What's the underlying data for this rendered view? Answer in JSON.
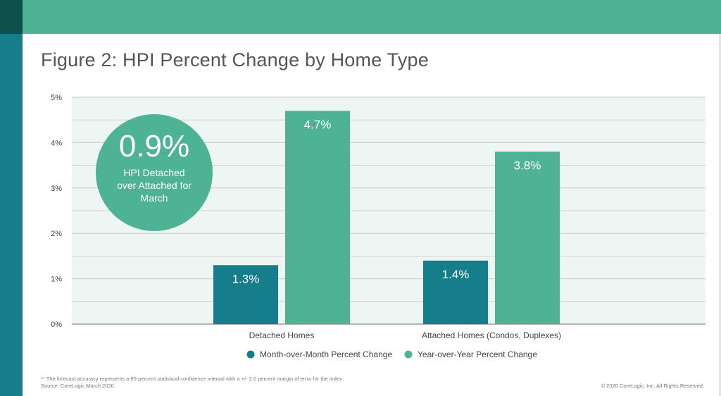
{
  "title": "Figure 2: HPI Percent Change by Home Type",
  "colors": {
    "mom": "#167e8a",
    "yoy": "#4db394",
    "plot_bg": "#eef6f3",
    "grid": "#c9c9c9"
  },
  "callout": {
    "value": "0.9%",
    "caption": "HPI Detached over Attached for March"
  },
  "chart_data": {
    "type": "bar",
    "title": "Figure 2: HPI Percent Change by Home Type",
    "categories": [
      "Detached Homes",
      "Attached Homes (Condos, Duplexes)"
    ],
    "series": [
      {
        "name": "Month-over-Month Percent Change",
        "values": [
          1.3,
          1.4
        ],
        "labels": [
          "1.3%",
          "1.4%"
        ]
      },
      {
        "name": "Year-over-Year Percent Change",
        "values": [
          4.7,
          3.8
        ],
        "labels": [
          "4.7%",
          "3.8%"
        ]
      }
    ],
    "yticks": [
      0,
      1,
      2,
      3,
      4,
      5
    ],
    "ytick_labels": [
      "0%",
      "1%",
      "2%",
      "3%",
      "4%",
      "5%"
    ],
    "ylim": [
      0,
      5
    ],
    "grid": true,
    "legend_position": "bottom"
  },
  "footnote": {
    "line1": "** The forecast accuracy represents a 95-percent statistical confidence interval with a +/- 2.0 percent margin of error for the index",
    "line2": "Source: CoreLogic March 2020"
  },
  "copyright": "© 2020 CoreLogic, Inc. All Rights Reserved."
}
